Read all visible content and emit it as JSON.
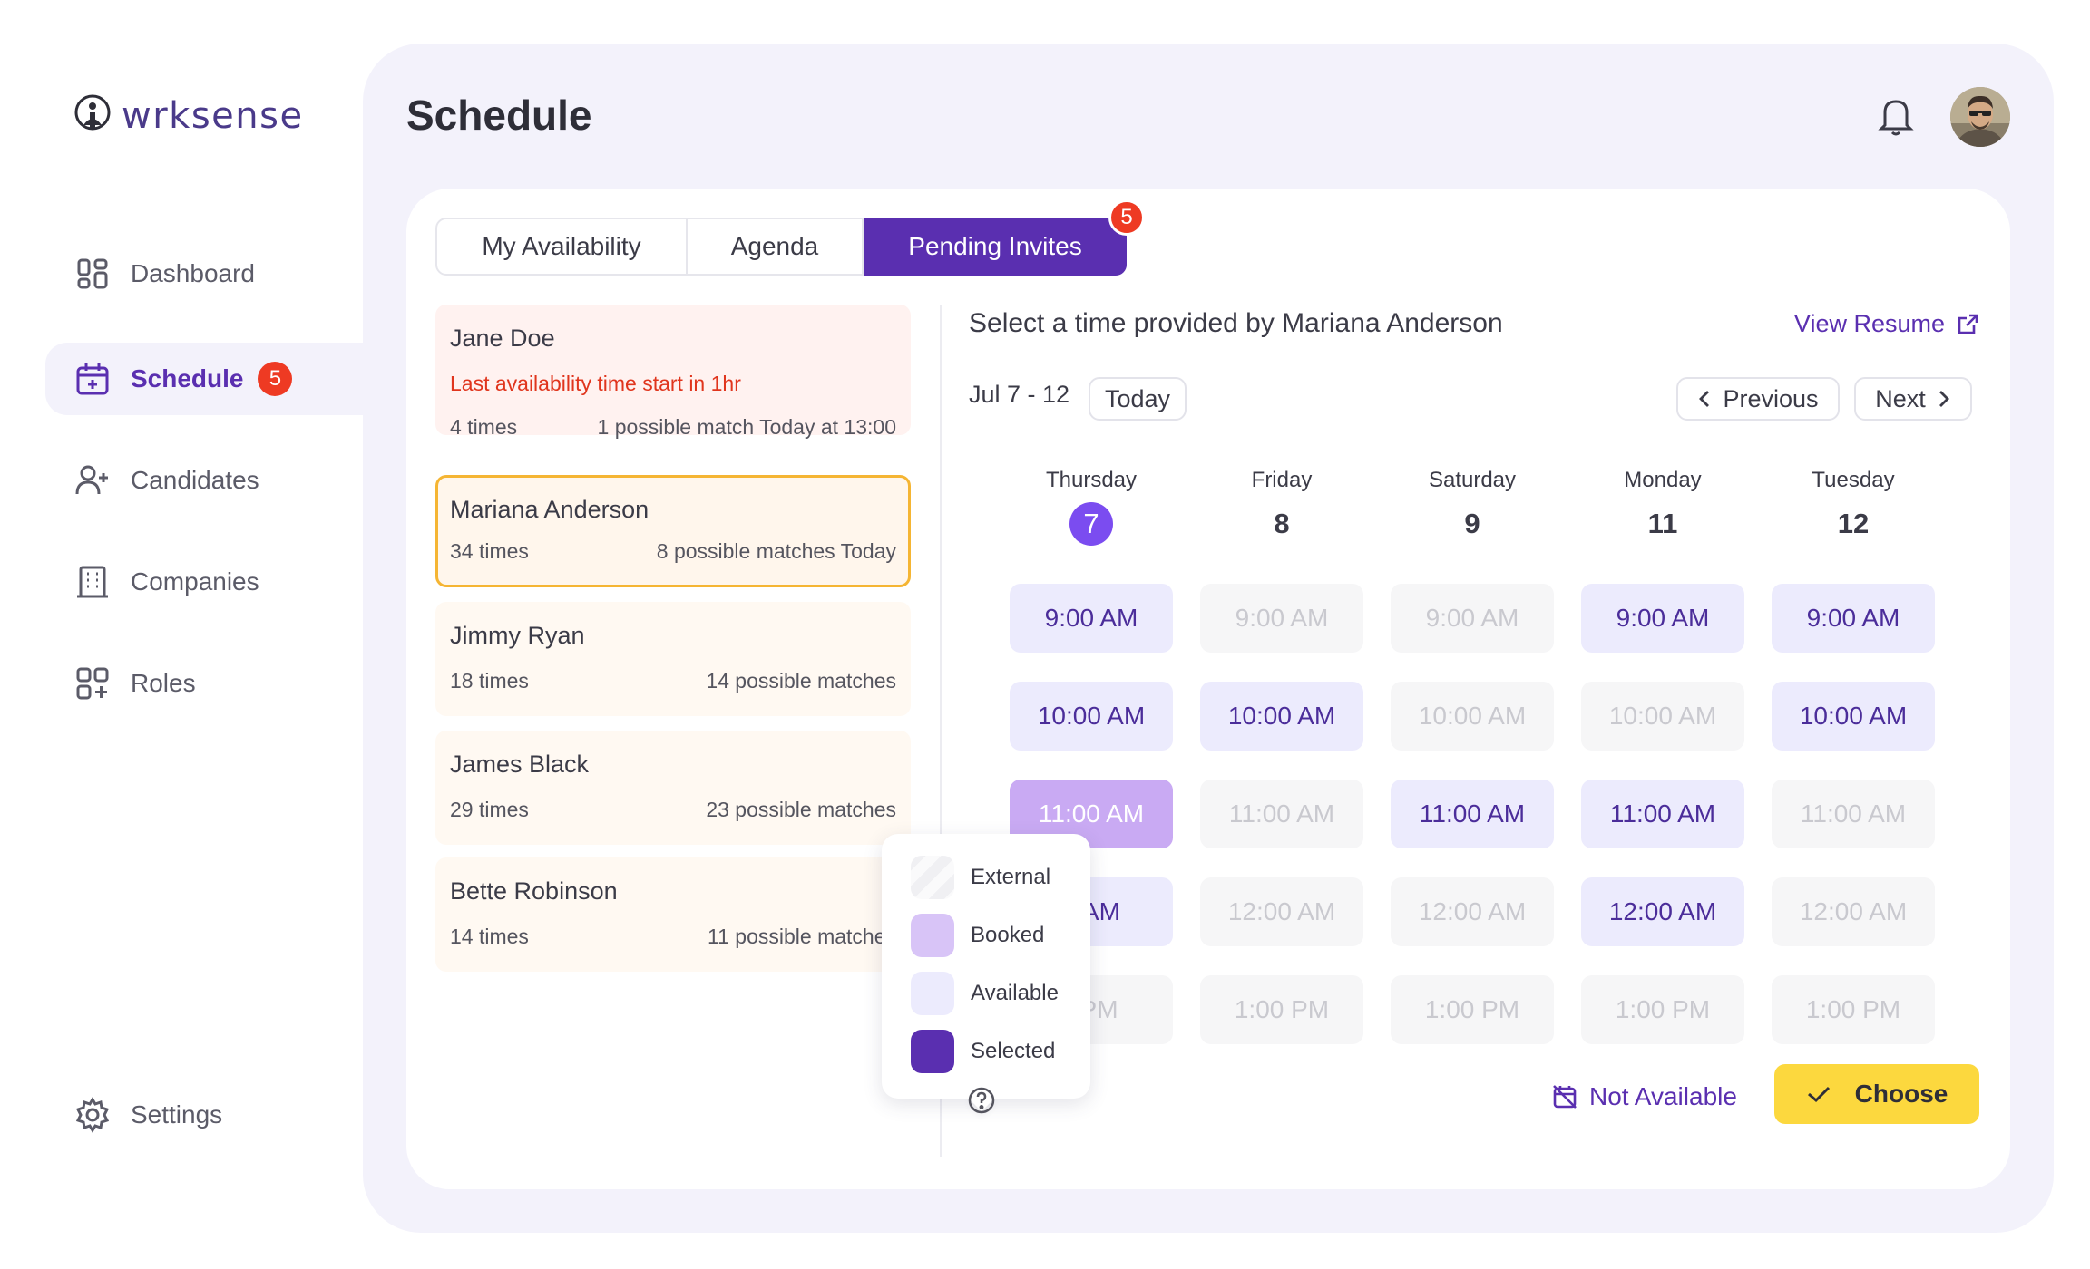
{
  "app": {
    "logo_text": "wrksense"
  },
  "sidebar": {
    "items": [
      {
        "label": "Dashboard",
        "icon": "dashboard-icon"
      },
      {
        "label": "Schedule",
        "icon": "calendar-icon",
        "badge": "5",
        "active": true
      },
      {
        "label": "Candidates",
        "icon": "add-user-icon"
      },
      {
        "label": "Companies",
        "icon": "building-icon"
      },
      {
        "label": "Roles",
        "icon": "grid-plus-icon"
      }
    ],
    "settings_label": "Settings"
  },
  "header": {
    "title": "Schedule"
  },
  "tabs": [
    {
      "label": "My Availability"
    },
    {
      "label": "Agenda"
    },
    {
      "label": "Pending Invites",
      "badge": "5",
      "active": true
    }
  ],
  "invites": [
    {
      "name": "Jane Doe",
      "warning": "Last availability time start in 1hr",
      "times": "4 times",
      "matches": "1 possible match Today at 13:00"
    },
    {
      "name": "Mariana Anderson",
      "times": "34 times",
      "matches": "8 possible matches Today",
      "selected": true
    },
    {
      "name": "Jimmy Ryan",
      "times": "18 times",
      "matches": "14 possible matches"
    },
    {
      "name": "James Black",
      "times": "29 times",
      "matches": "23 possible matches"
    },
    {
      "name": "Bette Robinson",
      "times": "14 times",
      "matches": "11 possible matches"
    }
  ],
  "panel": {
    "title": "Select a time provided by Mariana Anderson",
    "view_resume": "View Resume",
    "range": "Jul 7 - 12",
    "today": "Today",
    "previous": "Previous",
    "next": "Next",
    "days": [
      {
        "name": "Thursday",
        "num": "7",
        "today": true
      },
      {
        "name": "Friday",
        "num": "8"
      },
      {
        "name": "Saturday",
        "num": "9"
      },
      {
        "name": "Monday",
        "num": "11"
      },
      {
        "name": "Tuesday",
        "num": "12"
      }
    ],
    "slot_rows": [
      [
        "9:00 AM",
        "9:00 AM",
        "9:00 AM",
        "9:00 AM",
        "9:00 AM"
      ],
      [
        "10:00 AM",
        "10:00 AM",
        "10:00 AM",
        "10:00 AM",
        "10:00 AM"
      ],
      [
        "11:00 AM",
        "11:00 AM",
        "11:00 AM",
        "11:00 AM",
        "11:00 AM"
      ],
      [
        "0 AM",
        "12:00 AM",
        "12:00 AM",
        "12:00 AM",
        "12:00 AM"
      ],
      [
        ") PM",
        "1:00 PM",
        "1:00 PM",
        "1:00 PM",
        "1:00 PM"
      ]
    ],
    "slot_states": [
      [
        "available",
        "unavailable",
        "unavailable",
        "available",
        "available"
      ],
      [
        "available",
        "available",
        "unavailable",
        "unavailable",
        "available"
      ],
      [
        "booked",
        "unavailable",
        "available",
        "available",
        "unavailable"
      ],
      [
        "available",
        "unavailable",
        "unavailable",
        "available",
        "unavailable"
      ],
      [
        "unavailable",
        "unavailable",
        "unavailable",
        "unavailable",
        "unavailable"
      ]
    ],
    "legend": [
      "External",
      "Booked",
      "Available",
      "Selected"
    ],
    "not_available": "Not Available",
    "choose": "Choose"
  },
  "colors": {
    "brand": "#5a2fb0",
    "badge": "#ee3a23",
    "choose": "#fcd83e",
    "available": "#ecebfd",
    "booked": "#c9aaf3",
    "panel_bg": "#f3f2fb"
  }
}
